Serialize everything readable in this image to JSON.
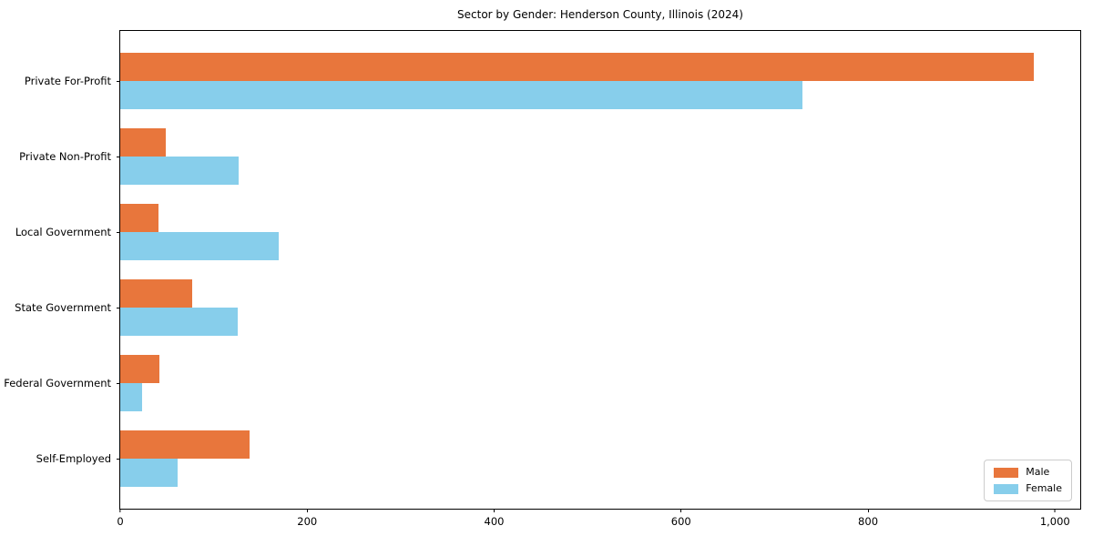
{
  "chart_data": {
    "type": "bar",
    "orientation": "horizontal",
    "title": "Sector by Gender: Henderson County, Illinois (2024)",
    "categories": [
      "Private For-Profit",
      "Private Non-Profit",
      "Local Government",
      "State Government",
      "Federal Government",
      "Self-Employed"
    ],
    "series": [
      {
        "name": "Male",
        "color": "#e8763c",
        "values": [
          977,
          49,
          41,
          77,
          42,
          138
        ]
      },
      {
        "name": "Female",
        "color": "#87ceeb",
        "values": [
          730,
          127,
          170,
          126,
          23,
          61
        ]
      }
    ],
    "xlabel": "",
    "ylabel": "",
    "xlim": [
      0,
      1027
    ],
    "x_ticks": [
      {
        "value": 0,
        "label": "0"
      },
      {
        "value": 200,
        "label": "200"
      },
      {
        "value": 400,
        "label": "400"
      },
      {
        "value": 600,
        "label": "600"
      },
      {
        "value": 800,
        "label": "800"
      },
      {
        "value": 1000,
        "label": "1,000"
      }
    ],
    "legend": {
      "position": "lower right",
      "labels": [
        "Male",
        "Female"
      ]
    },
    "grid": false,
    "plot_background": "#ffffff",
    "axis_color": "#000000"
  }
}
